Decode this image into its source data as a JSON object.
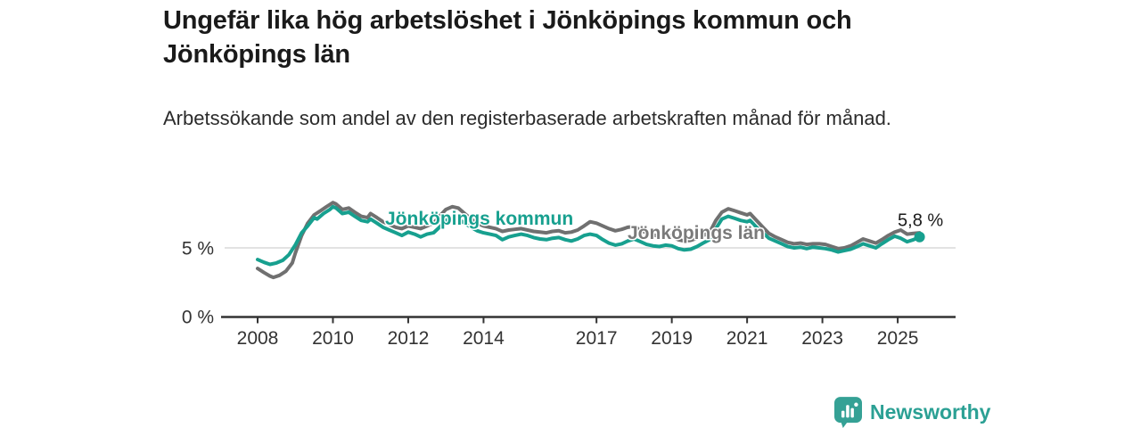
{
  "header": {
    "title": "Ungefär lika hög arbetslöshet i Jönköpings kommun och Jönköpings län",
    "subtitle": "Arbetssökande som andel av den registerbaserade arbetskraften månad för månad."
  },
  "chart_data": {
    "type": "line",
    "unit": "percent",
    "x_range": [
      2008,
      2025.75
    ],
    "y_range": [
      0,
      8.8
    ],
    "grid": "horizontal-at-5-only",
    "x_ticks": [
      "2008",
      "2010",
      "2012",
      "2014",
      "2017",
      "2019",
      "2021",
      "2023",
      "2025"
    ],
    "x_tick_years": [
      2008,
      2010,
      2012,
      2014,
      2017,
      2019,
      2021,
      2023,
      2025
    ],
    "y_ticks": [
      {
        "value": 0,
        "label": "0 %"
      },
      {
        "value": 5,
        "label": "5 %"
      }
    ],
    "end_label": "5,8 %",
    "colors": {
      "kommun": "#17a08f",
      "lan": "#707070",
      "lan_label": "#7a7a7a",
      "axis": "#333333",
      "gridline": "#d9d9d9"
    },
    "series": [
      {
        "name": "Jönköpings län",
        "color": "#707070",
        "points": [
          [
            2008.0,
            3.5
          ],
          [
            2008.17,
            3.2
          ],
          [
            2008.33,
            2.95
          ],
          [
            2008.42,
            2.85
          ],
          [
            2008.58,
            3.0
          ],
          [
            2008.75,
            3.3
          ],
          [
            2008.92,
            3.9
          ],
          [
            2009.0,
            4.6
          ],
          [
            2009.17,
            5.9
          ],
          [
            2009.33,
            6.8
          ],
          [
            2009.5,
            7.4
          ],
          [
            2009.67,
            7.7
          ],
          [
            2009.83,
            8.0
          ],
          [
            2010.0,
            8.3
          ],
          [
            2010.08,
            8.2
          ],
          [
            2010.25,
            7.8
          ],
          [
            2010.42,
            7.9
          ],
          [
            2010.58,
            7.6
          ],
          [
            2010.75,
            7.3
          ],
          [
            2010.92,
            7.2
          ],
          [
            2011.0,
            7.5
          ],
          [
            2011.17,
            7.2
          ],
          [
            2011.33,
            6.9
          ],
          [
            2011.5,
            6.7
          ],
          [
            2011.67,
            6.5
          ],
          [
            2011.83,
            6.4
          ],
          [
            2012.0,
            6.6
          ],
          [
            2012.17,
            6.5
          ],
          [
            2012.33,
            6.4
          ],
          [
            2012.5,
            6.6
          ],
          [
            2012.67,
            6.8
          ],
          [
            2012.83,
            7.3
          ],
          [
            2013.0,
            7.8
          ],
          [
            2013.17,
            8.0
          ],
          [
            2013.33,
            7.9
          ],
          [
            2013.5,
            7.5
          ],
          [
            2013.67,
            7.1
          ],
          [
            2013.83,
            6.8
          ],
          [
            2014.0,
            6.6
          ],
          [
            2014.17,
            6.5
          ],
          [
            2014.33,
            6.4
          ],
          [
            2014.5,
            6.2
          ],
          [
            2014.67,
            6.3
          ],
          [
            2014.83,
            6.35
          ],
          [
            2015.0,
            6.4
          ],
          [
            2015.17,
            6.3
          ],
          [
            2015.33,
            6.2
          ],
          [
            2015.5,
            6.15
          ],
          [
            2015.67,
            6.1
          ],
          [
            2015.83,
            6.2
          ],
          [
            2016.0,
            6.25
          ],
          [
            2016.17,
            6.1
          ],
          [
            2016.33,
            6.15
          ],
          [
            2016.5,
            6.3
          ],
          [
            2016.67,
            6.6
          ],
          [
            2016.83,
            6.9
          ],
          [
            2017.0,
            6.8
          ],
          [
            2017.17,
            6.6
          ],
          [
            2017.33,
            6.4
          ],
          [
            2017.5,
            6.25
          ],
          [
            2017.67,
            6.35
          ],
          [
            2017.83,
            6.5
          ],
          [
            2018.0,
            6.55
          ],
          [
            2018.17,
            6.3
          ],
          [
            2018.33,
            6.1
          ],
          [
            2018.5,
            5.95
          ],
          [
            2018.67,
            5.85
          ],
          [
            2018.83,
            5.9
          ],
          [
            2019.0,
            5.85
          ],
          [
            2019.17,
            5.6
          ],
          [
            2019.33,
            5.5
          ],
          [
            2019.5,
            5.55
          ],
          [
            2019.67,
            5.7
          ],
          [
            2019.83,
            5.9
          ],
          [
            2020.0,
            6.1
          ],
          [
            2020.17,
            7.0
          ],
          [
            2020.33,
            7.6
          ],
          [
            2020.5,
            7.85
          ],
          [
            2020.67,
            7.7
          ],
          [
            2020.83,
            7.55
          ],
          [
            2021.0,
            7.4
          ],
          [
            2021.08,
            7.5
          ],
          [
            2021.25,
            7.0
          ],
          [
            2021.42,
            6.5
          ],
          [
            2021.58,
            6.05
          ],
          [
            2021.75,
            5.8
          ],
          [
            2021.92,
            5.6
          ],
          [
            2022.08,
            5.4
          ],
          [
            2022.25,
            5.3
          ],
          [
            2022.42,
            5.35
          ],
          [
            2022.58,
            5.25
          ],
          [
            2022.75,
            5.3
          ],
          [
            2022.92,
            5.3
          ],
          [
            2023.08,
            5.25
          ],
          [
            2023.25,
            5.1
          ],
          [
            2023.42,
            4.95
          ],
          [
            2023.58,
            5.0
          ],
          [
            2023.75,
            5.15
          ],
          [
            2023.92,
            5.4
          ],
          [
            2024.08,
            5.65
          ],
          [
            2024.25,
            5.5
          ],
          [
            2024.42,
            5.35
          ],
          [
            2024.58,
            5.6
          ],
          [
            2024.75,
            5.9
          ],
          [
            2024.92,
            6.15
          ],
          [
            2025.08,
            6.3
          ],
          [
            2025.25,
            6.0
          ],
          [
            2025.42,
            6.05
          ],
          [
            2025.58,
            6.1
          ]
        ]
      },
      {
        "name": "Jönköpings kommun",
        "color": "#17a08f",
        "end_dot": true,
        "end_value": 5.8,
        "points": [
          [
            2008.0,
            4.15
          ],
          [
            2008.17,
            3.95
          ],
          [
            2008.33,
            3.8
          ],
          [
            2008.5,
            3.9
          ],
          [
            2008.67,
            4.1
          ],
          [
            2008.83,
            4.5
          ],
          [
            2009.0,
            5.2
          ],
          [
            2009.17,
            6.1
          ],
          [
            2009.33,
            6.6
          ],
          [
            2009.5,
            7.2
          ],
          [
            2009.58,
            7.1
          ],
          [
            2009.75,
            7.5
          ],
          [
            2009.92,
            7.8
          ],
          [
            2010.0,
            8.0
          ],
          [
            2010.08,
            7.9
          ],
          [
            2010.25,
            7.5
          ],
          [
            2010.42,
            7.6
          ],
          [
            2010.58,
            7.3
          ],
          [
            2010.75,
            7.0
          ],
          [
            2010.92,
            6.9
          ],
          [
            2011.0,
            7.1
          ],
          [
            2011.17,
            6.8
          ],
          [
            2011.33,
            6.5
          ],
          [
            2011.5,
            6.3
          ],
          [
            2011.67,
            6.1
          ],
          [
            2011.83,
            5.9
          ],
          [
            2012.0,
            6.15
          ],
          [
            2012.17,
            6.0
          ],
          [
            2012.33,
            5.8
          ],
          [
            2012.5,
            6.0
          ],
          [
            2012.67,
            6.1
          ],
          [
            2012.83,
            6.5
          ],
          [
            2013.0,
            7.0
          ],
          [
            2013.17,
            7.2
          ],
          [
            2013.33,
            7.1
          ],
          [
            2013.5,
            6.8
          ],
          [
            2013.67,
            6.5
          ],
          [
            2013.83,
            6.25
          ],
          [
            2014.0,
            6.1
          ],
          [
            2014.17,
            6.0
          ],
          [
            2014.33,
            5.9
          ],
          [
            2014.5,
            5.6
          ],
          [
            2014.67,
            5.8
          ],
          [
            2014.83,
            5.9
          ],
          [
            2015.0,
            6.0
          ],
          [
            2015.17,
            5.9
          ],
          [
            2015.33,
            5.75
          ],
          [
            2015.5,
            5.65
          ],
          [
            2015.67,
            5.6
          ],
          [
            2015.83,
            5.7
          ],
          [
            2016.0,
            5.75
          ],
          [
            2016.17,
            5.6
          ],
          [
            2016.33,
            5.5
          ],
          [
            2016.5,
            5.65
          ],
          [
            2016.67,
            5.9
          ],
          [
            2016.83,
            6.0
          ],
          [
            2017.0,
            5.9
          ],
          [
            2017.17,
            5.6
          ],
          [
            2017.33,
            5.35
          ],
          [
            2017.5,
            5.2
          ],
          [
            2017.67,
            5.3
          ],
          [
            2017.83,
            5.5
          ],
          [
            2018.0,
            5.65
          ],
          [
            2018.17,
            5.45
          ],
          [
            2018.33,
            5.25
          ],
          [
            2018.5,
            5.15
          ],
          [
            2018.67,
            5.1
          ],
          [
            2018.83,
            5.2
          ],
          [
            2019.0,
            5.15
          ],
          [
            2019.17,
            4.95
          ],
          [
            2019.33,
            4.85
          ],
          [
            2019.5,
            4.9
          ],
          [
            2019.67,
            5.1
          ],
          [
            2019.83,
            5.35
          ],
          [
            2020.0,
            5.6
          ],
          [
            2020.17,
            6.4
          ],
          [
            2020.33,
            7.1
          ],
          [
            2020.5,
            7.3
          ],
          [
            2020.67,
            7.15
          ],
          [
            2020.83,
            7.0
          ],
          [
            2021.0,
            6.9
          ],
          [
            2021.08,
            7.0
          ],
          [
            2021.25,
            6.5
          ],
          [
            2021.42,
            6.1
          ],
          [
            2021.58,
            5.7
          ],
          [
            2021.75,
            5.5
          ],
          [
            2021.92,
            5.3
          ],
          [
            2022.08,
            5.1
          ],
          [
            2022.25,
            5.0
          ],
          [
            2022.42,
            5.05
          ],
          [
            2022.58,
            4.95
          ],
          [
            2022.75,
            5.05
          ],
          [
            2022.92,
            5.0
          ],
          [
            2023.08,
            4.95
          ],
          [
            2023.25,
            4.85
          ],
          [
            2023.42,
            4.7
          ],
          [
            2023.58,
            4.8
          ],
          [
            2023.75,
            4.9
          ],
          [
            2023.92,
            5.1
          ],
          [
            2024.08,
            5.3
          ],
          [
            2024.25,
            5.15
          ],
          [
            2024.42,
            5.0
          ],
          [
            2024.58,
            5.3
          ],
          [
            2024.75,
            5.6
          ],
          [
            2024.92,
            5.85
          ],
          [
            2025.08,
            5.7
          ],
          [
            2025.25,
            5.45
          ],
          [
            2025.42,
            5.6
          ],
          [
            2025.58,
            5.8
          ]
        ]
      }
    ],
    "series_labels": [
      {
        "text": "Jönköpings kommun",
        "color": "#17a08f"
      },
      {
        "text": "Jönköpings län",
        "color": "#7a7a7a"
      }
    ]
  },
  "footer": {
    "brand": "Newsworthy",
    "logo_icon": "bar-chart-speech-bubble-icon"
  }
}
